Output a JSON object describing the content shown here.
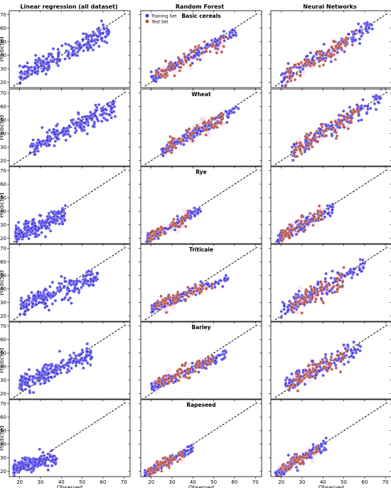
{
  "columns": [
    "Linear regression (all dataset)",
    "Random Forest",
    "Neural Networks"
  ],
  "rows": [
    "Basic cereals",
    "Wheat",
    "Rye",
    "Triticale",
    "Barley",
    "Rapeseed"
  ],
  "ylabel": "Predicted",
  "xlabel": "Observed",
  "legend": {
    "train": "Training Set",
    "test": "Test Set",
    "placement": "top-left"
  },
  "colors": {
    "train": "#3b2fe0",
    "test": "#b5473a",
    "line": "#000000"
  },
  "chart_data": {
    "type": "scatter",
    "xlim": [
      15,
      73
    ],
    "ylim": [
      16,
      73
    ],
    "xticks": [
      20,
      30,
      40,
      50,
      60,
      70
    ],
    "yticks": [
      20,
      30,
      40,
      50,
      60,
      70
    ],
    "reference_line": "y = x (dashed)",
    "grid": "3 columns x 6 rows",
    "panels": [
      {
        "row": "Basic cereals",
        "model": "Linear regression",
        "train": {
          "xr": [
            20,
            63
          ],
          "a": 9,
          "b": 0.78,
          "sd": 3.5,
          "n": 230
        },
        "test": null
      },
      {
        "row": "Basic cereals",
        "model": "Random Forest",
        "train": {
          "xr": [
            20,
            62
          ],
          "a": 5,
          "b": 0.86,
          "sd": 2.0,
          "n": 140
        },
        "test": {
          "xr": [
            22,
            56
          ],
          "a": 7,
          "b": 0.8,
          "sd": 3.0,
          "n": 70
        }
      },
      {
        "row": "Basic cereals",
        "model": "Neural Networks",
        "train": {
          "xr": [
            20,
            64
          ],
          "a": 3,
          "b": 0.93,
          "sd": 3.0,
          "n": 150
        },
        "test": {
          "xr": [
            22,
            55
          ],
          "a": 3,
          "b": 0.92,
          "sd": 3.5,
          "n": 80
        }
      },
      {
        "row": "Wheat",
        "model": "Linear regression",
        "train": {
          "xr": [
            25,
            66
          ],
          "a": 10,
          "b": 0.76,
          "sd": 3.5,
          "n": 230
        },
        "test": null
      },
      {
        "row": "Wheat",
        "model": "Random Forest",
        "train": {
          "xr": [
            25,
            62
          ],
          "a": 5,
          "b": 0.86,
          "sd": 2.0,
          "n": 140
        },
        "test": {
          "xr": [
            27,
            55
          ],
          "a": 8,
          "b": 0.8,
          "sd": 3.0,
          "n": 70
        }
      },
      {
        "row": "Wheat",
        "model": "Neural Networks",
        "train": {
          "xr": [
            25,
            68
          ],
          "a": 3,
          "b": 0.94,
          "sd": 3.0,
          "n": 150
        },
        "test": {
          "xr": [
            26,
            57
          ],
          "a": 3,
          "b": 0.92,
          "sd": 3.5,
          "n": 80
        }
      },
      {
        "row": "Rye",
        "model": "Linear regression",
        "train": {
          "xr": [
            18,
            42
          ],
          "a": 12,
          "b": 0.6,
          "sd": 3.5,
          "n": 200
        },
        "test": null
      },
      {
        "row": "Rye",
        "model": "Random Forest",
        "train": {
          "xr": [
            18,
            44
          ],
          "a": 6,
          "b": 0.78,
          "sd": 1.8,
          "n": 120
        },
        "test": {
          "xr": [
            19,
            38
          ],
          "a": 6,
          "b": 0.78,
          "sd": 2.5,
          "n": 60
        }
      },
      {
        "row": "Rye",
        "model": "Neural Networks",
        "train": {
          "xr": [
            18,
            45
          ],
          "a": 4,
          "b": 0.85,
          "sd": 2.5,
          "n": 130
        },
        "test": {
          "xr": [
            20,
            40
          ],
          "a": 5,
          "b": 0.82,
          "sd": 3.0,
          "n": 60
        }
      },
      {
        "row": "Triticale",
        "model": "Linear regression",
        "train": {
          "xr": [
            20,
            58
          ],
          "a": 15,
          "b": 0.58,
          "sd": 3.5,
          "n": 220
        },
        "test": null
      },
      {
        "row": "Triticale",
        "model": "Random Forest",
        "train": {
          "xr": [
            20,
            57
          ],
          "a": 14,
          "b": 0.6,
          "sd": 1.8,
          "n": 130
        },
        "test": {
          "xr": [
            22,
            50
          ],
          "a": 14,
          "b": 0.62,
          "sd": 2.5,
          "n": 70
        }
      },
      {
        "row": "Triticale",
        "model": "Neural Networks",
        "train": {
          "xr": [
            20,
            60
          ],
          "a": 6,
          "b": 0.87,
          "sd": 3.5,
          "n": 140
        },
        "test": {
          "xr": [
            24,
            50
          ],
          "a": 6,
          "b": 0.85,
          "sd": 3.5,
          "n": 70
        }
      },
      {
        "row": "Barley",
        "model": "Linear regression",
        "train": {
          "xr": [
            20,
            55
          ],
          "a": 13,
          "b": 0.66,
          "sd": 3.5,
          "n": 220
        },
        "test": null
      },
      {
        "row": "Barley",
        "model": "Random Forest",
        "train": {
          "xr": [
            20,
            56
          ],
          "a": 11,
          "b": 0.68,
          "sd": 1.8,
          "n": 130
        },
        "test": {
          "xr": [
            22,
            50
          ],
          "a": 11,
          "b": 0.7,
          "sd": 2.5,
          "n": 70
        }
      },
      {
        "row": "Barley",
        "model": "Neural Networks",
        "train": {
          "xr": [
            22,
            58
          ],
          "a": 9,
          "b": 0.78,
          "sd": 3.5,
          "n": 140
        },
        "test": {
          "xr": [
            24,
            52
          ],
          "a": 9,
          "b": 0.78,
          "sd": 3.5,
          "n": 70
        }
      },
      {
        "row": "Rapeseed",
        "model": "Linear regression",
        "train": {
          "xr": [
            17,
            38
          ],
          "a": 15,
          "b": 0.4,
          "sd": 2.5,
          "n": 200
        },
        "test": null
      },
      {
        "row": "Rapeseed",
        "model": "Random Forest",
        "train": {
          "xr": [
            17,
            40
          ],
          "a": 4,
          "b": 0.83,
          "sd": 1.5,
          "n": 120
        },
        "test": {
          "xr": [
            18,
            36
          ],
          "a": 4,
          "b": 0.83,
          "sd": 2.0,
          "n": 60
        }
      },
      {
        "row": "Rapeseed",
        "model": "Neural Networks",
        "train": {
          "xr": [
            17,
            42
          ],
          "a": 3,
          "b": 0.88,
          "sd": 2.5,
          "n": 130
        },
        "test": {
          "xr": [
            19,
            38
          ],
          "a": 3,
          "b": 0.87,
          "sd": 2.5,
          "n": 60
        }
      }
    ]
  }
}
